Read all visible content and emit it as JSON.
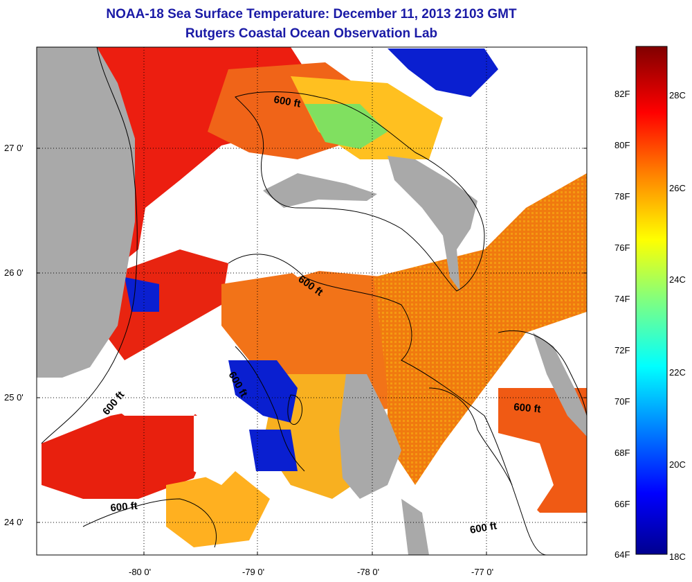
{
  "header": {
    "title": "NOAA-18 Sea Surface Temperature:  December 11, 2013 2103 GMT",
    "subtitle": "Rutgers Coastal Ocean Observation Lab"
  },
  "map": {
    "lat_ticks": [
      "27 0'",
      "26 0'",
      "25 0'",
      "24 0'"
    ],
    "lon_ticks": [
      "-80 0'",
      "-79 0'",
      "-78 0'",
      "-77 0'"
    ],
    "contour_label": "600 ft",
    "colors": {
      "land": "#a9a9a9",
      "cloud": "#ffffff"
    }
  },
  "colorbar": {
    "fahrenheit_labels": [
      "82F",
      "80F",
      "78F",
      "76F",
      "74F",
      "72F",
      "70F",
      "68F",
      "66F",
      "64F"
    ],
    "celsius_labels": [
      "28C",
      "26C",
      "24C",
      "22C",
      "20C",
      "18C"
    ],
    "colors": [
      "#00008f",
      "#0000ff",
      "#0080ff",
      "#00ffff",
      "#80ff80",
      "#ffff00",
      "#ff8000",
      "#ff0000",
      "#800000"
    ]
  }
}
